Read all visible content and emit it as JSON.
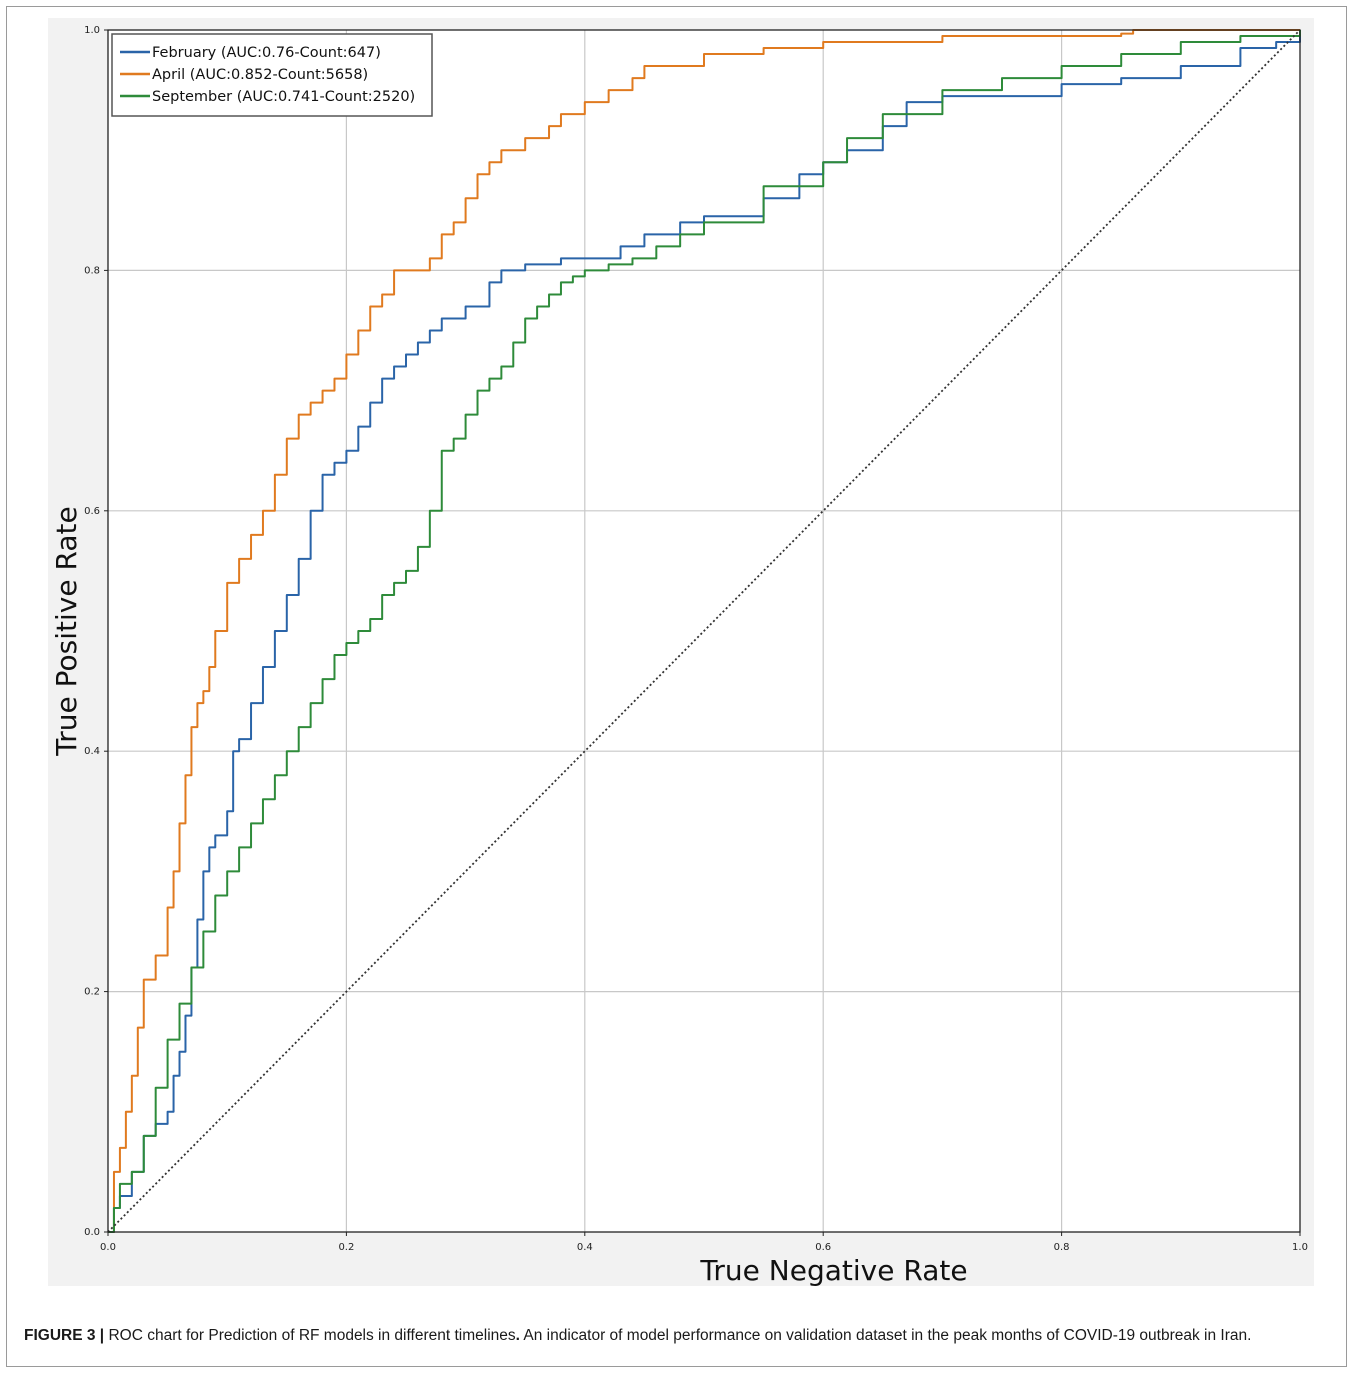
{
  "chart_data": {
    "type": "line",
    "title": "",
    "xlabel": "True Negative Rate",
    "ylabel": "True Positive Rate",
    "xlim": [
      0,
      1
    ],
    "ylim": [
      0,
      1
    ],
    "xticks": [
      "0.0",
      "0.2",
      "0.4",
      "0.6",
      "0.8",
      "1.0"
    ],
    "yticks": [
      "0.0",
      "0.2",
      "0.4",
      "0.6",
      "0.8",
      "1.0"
    ],
    "grid": true,
    "legend_position": "top-left",
    "series": [
      {
        "name": "February (AUC:0.76-Count:647)",
        "color": "#2a64a8",
        "x": [
          0,
          0.005,
          0.01,
          0.02,
          0.03,
          0.04,
          0.05,
          0.055,
          0.06,
          0.065,
          0.07,
          0.075,
          0.08,
          0.085,
          0.09,
          0.1,
          0.105,
          0.11,
          0.12,
          0.13,
          0.14,
          0.15,
          0.16,
          0.17,
          0.18,
          0.19,
          0.2,
          0.21,
          0.22,
          0.23,
          0.24,
          0.25,
          0.26,
          0.27,
          0.28,
          0.3,
          0.32,
          0.33,
          0.35,
          0.38,
          0.4,
          0.43,
          0.45,
          0.48,
          0.5,
          0.55,
          0.58,
          0.6,
          0.62,
          0.65,
          0.67,
          0.7,
          0.75,
          0.8,
          0.85,
          0.9,
          0.95,
          0.98,
          1.0
        ],
        "y": [
          0,
          0.02,
          0.03,
          0.05,
          0.08,
          0.09,
          0.1,
          0.13,
          0.15,
          0.18,
          0.22,
          0.26,
          0.3,
          0.32,
          0.33,
          0.35,
          0.4,
          0.41,
          0.44,
          0.47,
          0.5,
          0.53,
          0.56,
          0.6,
          0.63,
          0.64,
          0.65,
          0.67,
          0.69,
          0.71,
          0.72,
          0.73,
          0.74,
          0.75,
          0.76,
          0.77,
          0.79,
          0.8,
          0.805,
          0.81,
          0.81,
          0.82,
          0.83,
          0.84,
          0.845,
          0.86,
          0.88,
          0.89,
          0.9,
          0.92,
          0.94,
          0.945,
          0.945,
          0.955,
          0.96,
          0.97,
          0.985,
          0.99,
          1.0
        ]
      },
      {
        "name": "April (AUC:0.852-Count:5658)",
        "color": "#e07a1f",
        "x": [
          0,
          0.005,
          0.01,
          0.015,
          0.02,
          0.025,
          0.03,
          0.04,
          0.05,
          0.055,
          0.06,
          0.065,
          0.07,
          0.075,
          0.08,
          0.085,
          0.09,
          0.1,
          0.11,
          0.12,
          0.13,
          0.14,
          0.15,
          0.16,
          0.17,
          0.18,
          0.19,
          0.2,
          0.21,
          0.22,
          0.23,
          0.24,
          0.25,
          0.27,
          0.28,
          0.29,
          0.3,
          0.31,
          0.32,
          0.33,
          0.35,
          0.37,
          0.38,
          0.4,
          0.42,
          0.44,
          0.45,
          0.47,
          0.5,
          0.52,
          0.55,
          0.6,
          0.65,
          0.7,
          0.75,
          0.8,
          0.85,
          0.86,
          0.9,
          1.0
        ],
        "y": [
          0,
          0.05,
          0.07,
          0.1,
          0.13,
          0.17,
          0.21,
          0.23,
          0.27,
          0.3,
          0.34,
          0.38,
          0.42,
          0.44,
          0.45,
          0.47,
          0.5,
          0.54,
          0.56,
          0.58,
          0.6,
          0.63,
          0.66,
          0.68,
          0.69,
          0.7,
          0.71,
          0.73,
          0.75,
          0.77,
          0.78,
          0.8,
          0.8,
          0.81,
          0.83,
          0.84,
          0.86,
          0.88,
          0.89,
          0.9,
          0.91,
          0.92,
          0.93,
          0.94,
          0.95,
          0.96,
          0.97,
          0.97,
          0.98,
          0.98,
          0.985,
          0.99,
          0.99,
          0.995,
          0.995,
          0.995,
          0.997,
          1.0,
          1.0,
          1.0
        ]
      },
      {
        "name": "September (AUC:0.741-Count:2520)",
        "color": "#2e8b3a",
        "x": [
          0,
          0.005,
          0.01,
          0.02,
          0.03,
          0.04,
          0.05,
          0.06,
          0.07,
          0.08,
          0.09,
          0.1,
          0.11,
          0.12,
          0.13,
          0.14,
          0.15,
          0.16,
          0.17,
          0.18,
          0.19,
          0.2,
          0.21,
          0.22,
          0.23,
          0.24,
          0.25,
          0.26,
          0.27,
          0.28,
          0.29,
          0.3,
          0.31,
          0.32,
          0.33,
          0.34,
          0.35,
          0.36,
          0.37,
          0.38,
          0.39,
          0.4,
          0.42,
          0.44,
          0.46,
          0.48,
          0.5,
          0.55,
          0.6,
          0.62,
          0.65,
          0.7,
          0.75,
          0.8,
          0.85,
          0.9,
          0.95,
          1.0
        ],
        "y": [
          0,
          0.02,
          0.04,
          0.05,
          0.08,
          0.12,
          0.16,
          0.19,
          0.22,
          0.25,
          0.28,
          0.3,
          0.32,
          0.34,
          0.36,
          0.38,
          0.4,
          0.42,
          0.44,
          0.46,
          0.48,
          0.49,
          0.5,
          0.51,
          0.53,
          0.54,
          0.55,
          0.57,
          0.6,
          0.65,
          0.66,
          0.68,
          0.7,
          0.71,
          0.72,
          0.74,
          0.76,
          0.77,
          0.78,
          0.79,
          0.795,
          0.8,
          0.805,
          0.81,
          0.82,
          0.83,
          0.84,
          0.87,
          0.89,
          0.91,
          0.93,
          0.95,
          0.96,
          0.97,
          0.98,
          0.99,
          0.995,
          1.0
        ]
      },
      {
        "name": "",
        "color": "#333333",
        "style": "dotted",
        "x": [
          0,
          1
        ],
        "y": [
          0,
          1
        ]
      }
    ],
    "legend": [
      {
        "label": "February (AUC:0.76-Count:647)",
        "color": "#2a64a8"
      },
      {
        "label": "April (AUC:0.852-Count:5658)",
        "color": "#e07a1f"
      },
      {
        "label": "September (AUC:0.741-Count:2520)",
        "color": "#2e8b3a"
      }
    ]
  },
  "caption": {
    "label": "FIGURE 3 |",
    "text_part1": " ROC chart for Prediction of RF models in different timelines",
    "bold_dot": ".",
    "text_part2": " An indicator of model performance on validation dataset in the peak months of COVID-19 outbreak in Iran."
  }
}
